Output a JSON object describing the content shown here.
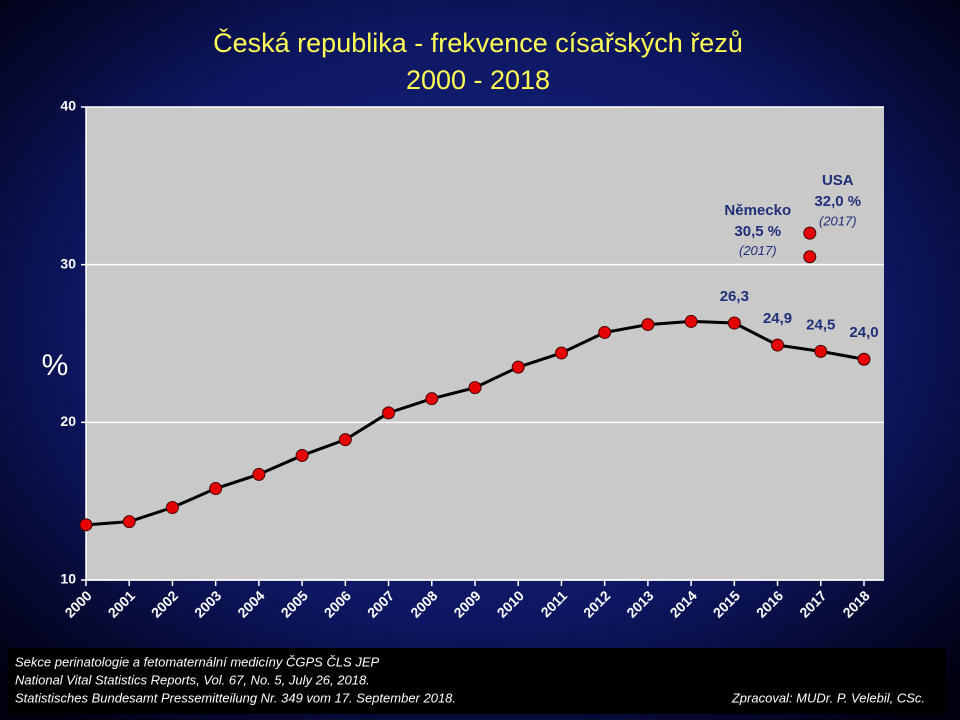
{
  "chart_data": {
    "type": "line",
    "title": "Česká republika - frekvence císařských řezů",
    "subtitle": "2000 - 2018",
    "y_label": "%",
    "categories": [
      "2000",
      "2001",
      "2002",
      "2003",
      "2004",
      "2005",
      "2006",
      "2007",
      "2008",
      "2009",
      "2010",
      "2011",
      "2012",
      "2013",
      "2014",
      "2015",
      "2016",
      "2017",
      "2018"
    ],
    "values": [
      13.5,
      13.7,
      14.6,
      15.8,
      16.7,
      17.9,
      18.9,
      20.6,
      21.5,
      22.2,
      23.5,
      24.4,
      25.7,
      26.2,
      26.4,
      26.3,
      24.9,
      24.5,
      24.0
    ],
    "value_labels": [
      null,
      null,
      null,
      null,
      null,
      null,
      null,
      null,
      null,
      null,
      null,
      null,
      null,
      null,
      null,
      "26,3",
      "24,9",
      "24,5",
      "24,0"
    ],
    "color": "#000000",
    "marker_color": "#e60000",
    "ylim": [
      10,
      40
    ],
    "yticks": [
      10,
      20,
      30,
      40
    ],
    "grid": true,
    "comparison_points": [
      {
        "name": "Německo",
        "value": 30.5,
        "value_label": "30,5 %",
        "note": "(2017)",
        "category": "2017"
      },
      {
        "name": "USA",
        "value": 32.0,
        "value_label": "32,0 %",
        "note": "(2017)",
        "category": "2017"
      }
    ],
    "footer": [
      "Sekce perinatologie a fetomaternální medicíny ČGPS ČLS JEP",
      "National Vital Statistics Reports, Vol. 67, No. 5, July 26, 2018.",
      "Statistisches Bundesamt Pressemitteilung Nr. 349 vom 17. September 2018."
    ],
    "author": "Zpracoval: MUDr. P. Velebil, CSc."
  }
}
